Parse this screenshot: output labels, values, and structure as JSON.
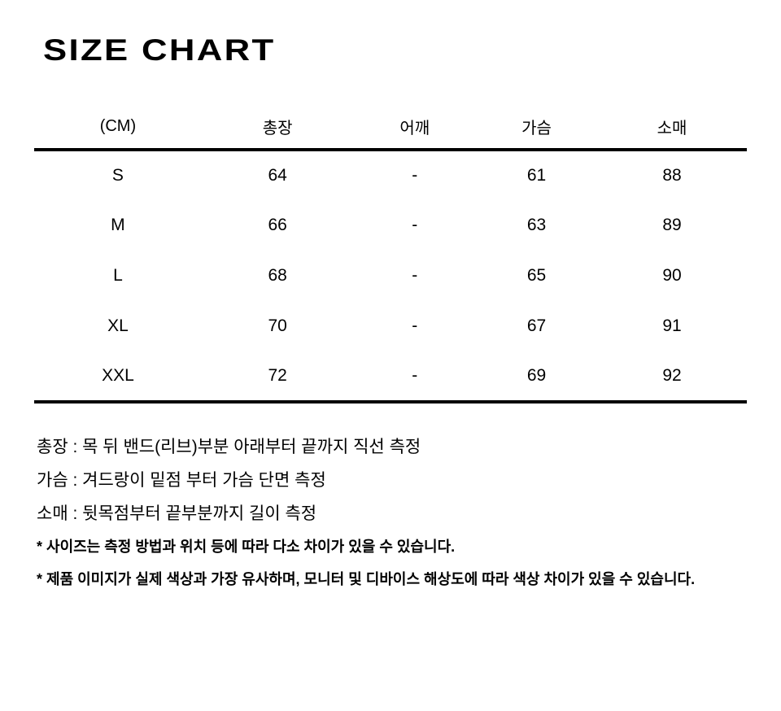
{
  "page": {
    "title": "SIZE CHART"
  },
  "table": {
    "unit_label": "(CM)",
    "columns": [
      "총장",
      "어깨",
      "가슴",
      "소매"
    ],
    "rows": [
      {
        "size": "S",
        "values": [
          "64",
          "-",
          "61",
          "88"
        ]
      },
      {
        "size": "M",
        "values": [
          "66",
          "-",
          "63",
          "89"
        ]
      },
      {
        "size": "L",
        "values": [
          "68",
          "-",
          "65",
          "90"
        ]
      },
      {
        "size": "XL",
        "values": [
          "70",
          "-",
          "67",
          "91"
        ]
      },
      {
        "size": "XXL",
        "values": [
          "72",
          "-",
          "69",
          "92"
        ]
      }
    ]
  },
  "notes": {
    "measurements": [
      "총장 : 목 뒤 밴드(리브)부분 아래부터 끝까지 직선 측정",
      "가슴 : 겨드랑이 밑점 부터 가슴 단면 측정",
      "소매 : 뒷목점부터 끝부분까지 길이 측정"
    ],
    "disclaimers": [
      "* 사이즈는 측정 방법과 위치 등에 따라 다소 차이가 있을 수 있습니다.",
      "* 제품 이미지가 실제 색상과 가장 유사하며, 모니터 및 디바이스 해상도에 따라 색상 차이가 있을 수 있습니다."
    ]
  },
  "colors": {
    "text": "#000000",
    "background": "#ffffff",
    "rule": "#000000"
  }
}
